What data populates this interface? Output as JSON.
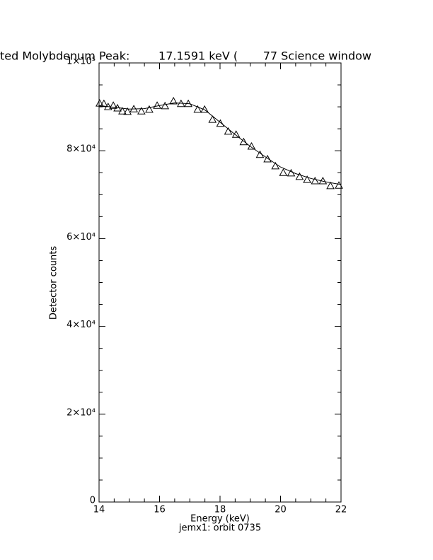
{
  "chart_data": {
    "type": "scatter",
    "title": "ted Molybdenum Peak:        17.1591 keV (       77 Science window",
    "x_label": "Energy (keV)",
    "subtitle": "jemx1: orbit 0735",
    "y_label": "Detector counts",
    "xlim": [
      14,
      22
    ],
    "ylim": [
      0,
      100000
    ],
    "xticks": [
      14,
      16,
      18,
      20,
      22
    ],
    "yticks": [
      0,
      {
        "value": 20000,
        "label": "2×10⁴"
      },
      {
        "value": 40000,
        "label": "4×10⁴"
      },
      {
        "value": 60000,
        "label": "6×10⁴"
      },
      {
        "value": 80000,
        "label": "8×10⁴"
      },
      {
        "value": 100000,
        "label": "1×10⁵"
      }
    ],
    "x_minor_ticks": [
      14.5,
      15,
      15.5,
      16.5,
      17,
      17.5,
      18.5,
      19,
      19.5,
      20.5,
      21,
      21.5
    ],
    "y_minor_ticks": [
      5000,
      10000,
      15000,
      25000,
      30000,
      35000,
      45000,
      50000,
      55000,
      65000,
      70000,
      75000,
      85000,
      90000,
      95000
    ],
    "series": [
      {
        "marker": "triangle",
        "color": "#000000",
        "x": [
          14.02,
          14.16,
          14.3,
          14.47,
          14.61,
          14.77,
          14.94,
          15.15,
          15.4,
          15.66,
          15.92,
          16.18,
          16.46,
          16.71,
          16.95,
          17.26,
          17.49,
          17.75,
          18.01,
          18.27,
          18.53,
          18.78,
          19.04,
          19.32,
          19.57,
          19.83,
          20.09,
          20.35,
          20.63,
          20.88,
          21.14,
          21.4,
          21.65,
          21.93
        ],
        "values": [
          90800,
          90700,
          90000,
          90300,
          89700,
          89000,
          88900,
          89500,
          89000,
          89400,
          90300,
          90200,
          91300,
          90700,
          90700,
          89400,
          89400,
          87100,
          86200,
          84400,
          83700,
          82000,
          81000,
          79100,
          78100,
          76500,
          75000,
          74900,
          74100,
          73400,
          73100,
          73100,
          72000,
          72100
        ]
      },
      {
        "line": true,
        "color": "#000000",
        "x": [
          14,
          14.5,
          15,
          15.5,
          16,
          16.5,
          17,
          17.5,
          18,
          18.5,
          19,
          19.5,
          20,
          20.5,
          21,
          21.5,
          22
        ],
        "values": [
          90300,
          89900,
          89500,
          89600,
          90300,
          90900,
          90700,
          89300,
          86500,
          83700,
          81000,
          78600,
          76300,
          74800,
          73700,
          72900,
          72300
        ]
      }
    ]
  }
}
